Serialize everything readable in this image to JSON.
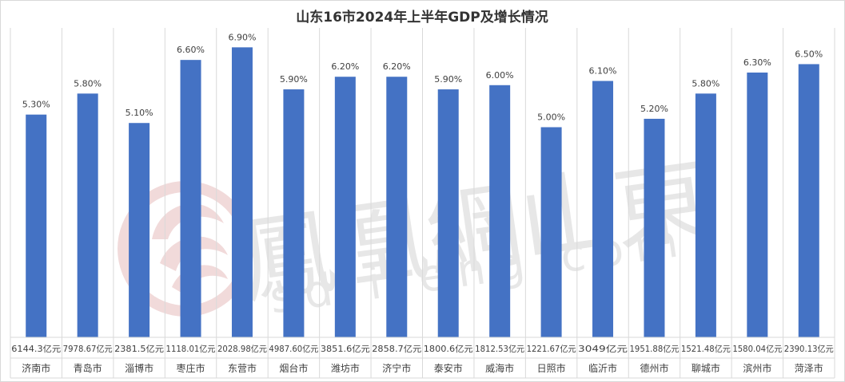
{
  "watermark": {
    "brand": "鳳凰網山東",
    "url": "sd.ifeng.com",
    "color": "#e7e7e7",
    "logo_color": "#f1dada",
    "icon": "phoenix-logo-icon"
  },
  "chart_data": {
    "type": "bar",
    "title": "山东16市2024年上半年GDP及增长情况",
    "categories": [
      "济南市",
      "青岛市",
      "淄博市",
      "枣庄市",
      "东营市",
      "烟台市",
      "潍坊市",
      "济宁市",
      "泰安市",
      "威海市",
      "日照市",
      "临沂市",
      "德州市",
      "聊城市",
      "滨州市",
      "菏泽市"
    ],
    "gdp_labels": [
      "6144.3亿元",
      "7978.67亿元",
      "2381.5亿元",
      "1118.01亿元",
      "2028.98亿元",
      "4987.60亿元",
      "3851.6亿元",
      "2858.7亿元",
      "1800.6亿元",
      "1812.53亿元",
      "1221.67亿元",
      "3049亿元",
      "1951.88亿元",
      "1521.48亿元",
      "1580.04亿元",
      "2390.13亿元"
    ],
    "values": [
      5.3,
      5.8,
      5.1,
      6.6,
      6.9,
      5.9,
      6.2,
      6.2,
      5.9,
      6.0,
      5.0,
      6.1,
      5.2,
      5.8,
      6.3,
      6.5
    ],
    "value_labels": [
      "5.30%",
      "5.80%",
      "5.10%",
      "6.60%",
      "6.90%",
      "5.90%",
      "6.20%",
      "6.20%",
      "5.90%",
      "6.00%",
      "5.00%",
      "6.10%",
      "5.20%",
      "5.80%",
      "6.30%",
      "6.50%"
    ],
    "ylim": [
      0,
      7.4
    ],
    "bar_color": "#4472c4",
    "grid": false,
    "legend": "none"
  }
}
